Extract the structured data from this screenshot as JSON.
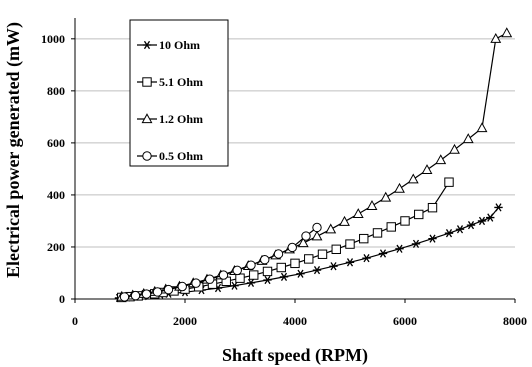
{
  "chart_data": {
    "type": "line",
    "xlabel": "Shaft speed (RPM)",
    "ylabel": "Electrical power generated (mW)",
    "xlim": [
      0,
      8000
    ],
    "ylim": [
      0,
      1080
    ],
    "x_ticks": [
      "0",
      "2000",
      "4000",
      "6000",
      "8000"
    ],
    "y_ticks": [
      "0",
      "200",
      "400",
      "600",
      "800",
      "1000"
    ],
    "legend_position": "top-left",
    "grid": "horizontal",
    "series": [
      {
        "name": "10 Ohm",
        "marker": "asterisk",
        "x": [
          800,
          950,
          1100,
          1250,
          1400,
          1550,
          1700,
          2000,
          2300,
          2600,
          2900,
          3200,
          3500,
          3800,
          4100,
          4400,
          4700,
          5000,
          5300,
          5600,
          5900,
          6200,
          6500,
          6800,
          7000,
          7200,
          7400,
          7550,
          7700
        ],
        "y": [
          4,
          6,
          9,
          11,
          14,
          17,
          20,
          26,
          34,
          42,
          51,
          62,
          73,
          85,
          97,
          111,
          126,
          141,
          157,
          175,
          193,
          212,
          232,
          253,
          268,
          284,
          300,
          313,
          352
        ]
      },
      {
        "name": "5.1 Ohm",
        "marker": "square",
        "x": [
          850,
          1000,
          1150,
          1300,
          1450,
          1600,
          1800,
          2000,
          2250,
          2500,
          2750,
          3000,
          3250,
          3500,
          3750,
          4000,
          4250,
          4500,
          4750,
          5000,
          5250,
          5500,
          5750,
          6000,
          6250,
          6500,
          6800
        ],
        "y": [
          6,
          9,
          12,
          16,
          20,
          25,
          31,
          38,
          47,
          57,
          68,
          80,
          92,
          106,
          121,
          137,
          154,
          172,
          191,
          211,
          232,
          254,
          277,
          300,
          325,
          351,
          449
        ]
      },
      {
        "name": "1.2 Ohm",
        "marker": "triangle",
        "x": [
          850,
          1050,
          1250,
          1450,
          1650,
          1900,
          2150,
          2400,
          2650,
          2900,
          3150,
          3400,
          3650,
          3900,
          4150,
          4400,
          4650,
          4900,
          5150,
          5400,
          5650,
          5900,
          6150,
          6400,
          6650,
          6900,
          7150,
          7400,
          7650,
          7850
        ],
        "y": [
          9,
          14,
          20,
          28,
          37,
          48,
          61,
          75,
          91,
          108,
          127,
          147,
          168,
          191,
          215,
          241,
          268,
          297,
          327,
          358,
          390,
          424,
          460,
          496,
          534,
          574,
          615,
          657,
          1000,
          1022
        ]
      },
      {
        "name": "0.5 Ohm",
        "marker": "circle",
        "x": [
          900,
          1100,
          1300,
          1500,
          1700,
          1950,
          2200,
          2450,
          2700,
          2950,
          3200,
          3450,
          3700,
          3950,
          4200,
          4400
        ],
        "y": [
          8,
          13,
          19,
          27,
          36,
          48,
          61,
          76,
          92,
          110,
          130,
          151,
          173,
          198,
          242,
          275
        ]
      }
    ]
  }
}
